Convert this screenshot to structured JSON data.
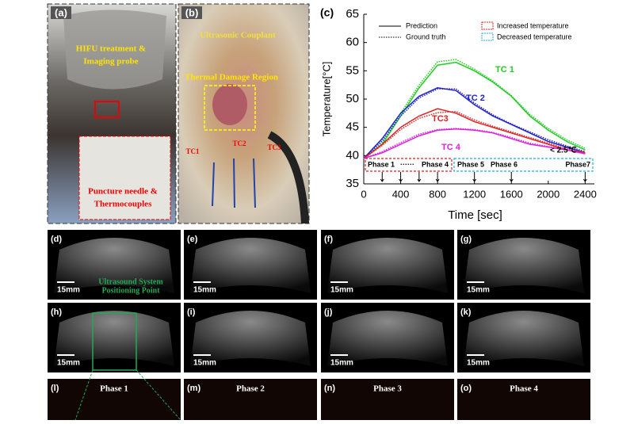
{
  "chart_data": {
    "type": "line",
    "panel_label": "(c)",
    "y_label": "Temperature[°C]",
    "x_label": "Time [sec]",
    "xlim": [
      0,
      2500
    ],
    "ylim": [
      35,
      65
    ],
    "xticks": [
      0,
      400,
      800,
      1200,
      1600,
      2000,
      2400
    ],
    "yticks": [
      35,
      40,
      45,
      50,
      55,
      60,
      65
    ],
    "x": [
      0,
      200,
      400,
      600,
      800,
      1000,
      1200,
      1400,
      1600,
      1800,
      2000,
      2200,
      2400
    ],
    "series": [
      {
        "name": "TC 1",
        "color": "#22cc22",
        "prediction": [
          39.5,
          42,
          47,
          52,
          56,
          56.5,
          55,
          53,
          50.5,
          47,
          44.5,
          42.5,
          41
        ],
        "ground_truth": [
          39.5,
          42.3,
          47.5,
          52.5,
          56.6,
          57,
          55.3,
          53.2,
          50.6,
          47.3,
          44.8,
          42.8,
          41.3
        ]
      },
      {
        "name": "TC 2",
        "color": "#2222cc",
        "prediction": [
          39.5,
          43,
          47.5,
          50.5,
          52,
          51.5,
          49,
          47,
          45.5,
          44,
          42.5,
          41.5,
          40.5
        ],
        "ground_truth": [
          39.5,
          42.6,
          47,
          50.2,
          51.8,
          51.8,
          49.3,
          47.2,
          45.6,
          44.2,
          42.8,
          41.7,
          40.7
        ]
      },
      {
        "name": "TC3",
        "color": "#dd2222",
        "prediction": [
          39.5,
          42,
          45,
          47,
          48.3,
          47.5,
          46,
          45,
          44,
          43,
          42,
          41,
          40.5
        ],
        "ground_truth": [
          39.5,
          41.8,
          44.6,
          46.6,
          47.6,
          47.8,
          46.3,
          45.2,
          44.2,
          43.2,
          42.2,
          41.2,
          40.6
        ]
      },
      {
        "name": "TC 4",
        "color": "#dd22dd",
        "prediction": [
          39.5,
          40.5,
          42,
          43.5,
          44.5,
          44.7,
          44.5,
          44,
          43,
          42,
          41.5,
          41,
          40.3
        ],
        "ground_truth": [
          39.5,
          40.7,
          42.3,
          43.8,
          44.6,
          44.8,
          44.6,
          44.1,
          43.2,
          42.2,
          41.6,
          41.1,
          40.4
        ]
      }
    ],
    "legend": [
      "Prediction",
      "Ground truth",
      "Increased temperature",
      "Decreased temperature"
    ],
    "increase_color": "#dd2222",
    "decrease_color": "#22aadd",
    "phase_labels": [
      "Phase 1",
      "······",
      "Phase 4",
      "Phase 5",
      "Phase 6",
      "Phase7"
    ],
    "phase_times": [
      200,
      400,
      600,
      800,
      1200,
      1600,
      2400
    ],
    "threshold_note": "< 2.5℃"
  },
  "photos": [
    {
      "label": "(a)",
      "captions": [
        "HIFU treatment &",
        "Imaging probe",
        "Puncture needle &",
        "Thermocouples"
      ]
    },
    {
      "label": "(b)",
      "captions": [
        "Ultrasonic Couplant",
        "Thermal Damage Region",
        "TC1",
        "TC2",
        "TC3"
      ]
    }
  ],
  "ultrasound": {
    "labels": [
      "(d)",
      "(e)",
      "(f)",
      "(g)",
      "(h)",
      "(i)",
      "(j)",
      "(k)",
      "(l)",
      "(m)",
      "(n)",
      "(o)"
    ],
    "scale": "15mm",
    "note": [
      "Ultrasound System",
      "Positioning Point"
    ],
    "phases": [
      "Phase 1",
      "Phase 2",
      "Phase 3",
      "Phase 4"
    ]
  }
}
